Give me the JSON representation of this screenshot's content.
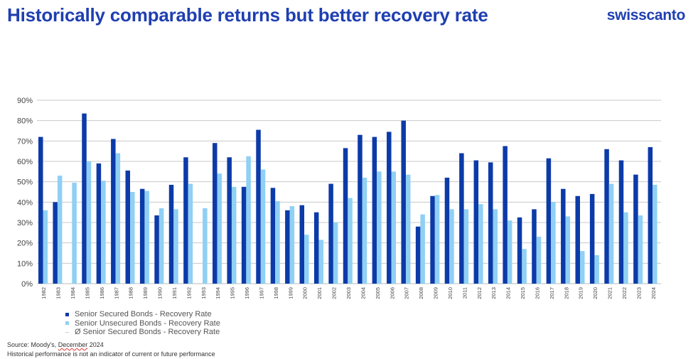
{
  "header": {
    "title": "Historically comparable returns but better recovery rate",
    "logo_text": "swisscanto"
  },
  "colors": {
    "title": "#1f3fb1",
    "secured": "#0c3aa8",
    "unsecured": "#8fd0f4",
    "grid": "#c8c8c8"
  },
  "chart_data": {
    "type": "bar",
    "categories": [
      "1982",
      "1983",
      "1984",
      "1985",
      "1986",
      "1987",
      "1988",
      "1989",
      "1990",
      "1991",
      "1992",
      "1993",
      "1994",
      "1995",
      "1996",
      "1997",
      "1998",
      "1999",
      "2000",
      "2001",
      "2002",
      "2003",
      "2004",
      "2005",
      "2006",
      "2007",
      "2008",
      "2009",
      "2010",
      "2011",
      "2012",
      "2013",
      "2014",
      "2015",
      "2016",
      "2017",
      "2018",
      "2019",
      "2020",
      "2021",
      "2022",
      "2023",
      "2024"
    ],
    "series": [
      {
        "name": "Senior Secured Bonds - Recovery Rate",
        "color": "#0c3aa8",
        "values": [
          72,
          40,
          null,
          83.5,
          59,
          71,
          55.5,
          46.5,
          33.5,
          48.5,
          62,
          null,
          69,
          62,
          47.5,
          75.5,
          47,
          36,
          38.5,
          35,
          49,
          66.5,
          73,
          72,
          74.5,
          80,
          28,
          43,
          52,
          64,
          60.5,
          59.5,
          67.5,
          32.5,
          36.5,
          61.5,
          46.5,
          43,
          44,
          66,
          60.5,
          53.5,
          67
        ]
      },
      {
        "name": "Senior Unsecured Bonds - Recovery Rate",
        "color": "#8fd0f4",
        "values": [
          36,
          53,
          49.5,
          60,
          50.5,
          64,
          45,
          45.5,
          37,
          36.5,
          49,
          37,
          54,
          47.5,
          62.5,
          56,
          40.5,
          38,
          24,
          21.5,
          30,
          42,
          52,
          55,
          55,
          53.5,
          34,
          43.5,
          36.5,
          36.5,
          39,
          36.5,
          31,
          17,
          23,
          40,
          33,
          16,
          14,
          49,
          35,
          33.5,
          48.5
        ]
      }
    ],
    "ylim": [
      0,
      90
    ],
    "yticks": [
      "0%",
      "10%",
      "20%",
      "30%",
      "40%",
      "50%",
      "60%",
      "70%",
      "80%",
      "90%"
    ],
    "grid": true,
    "legend": {
      "position": "bottom-left",
      "entries": [
        "Senior Secured Bonds - Recovery Rate",
        "Senior Unsecured Bonds - Recovery Rate",
        "Ø Senior Secured Bonds - Recovery Rate"
      ]
    }
  },
  "footer": {
    "source_prefix": "Source: Moody's, ",
    "source_date": "December",
    "source_suffix": " 2024",
    "disclaimer": "Historical performance is not an indicator of current or future performance"
  }
}
